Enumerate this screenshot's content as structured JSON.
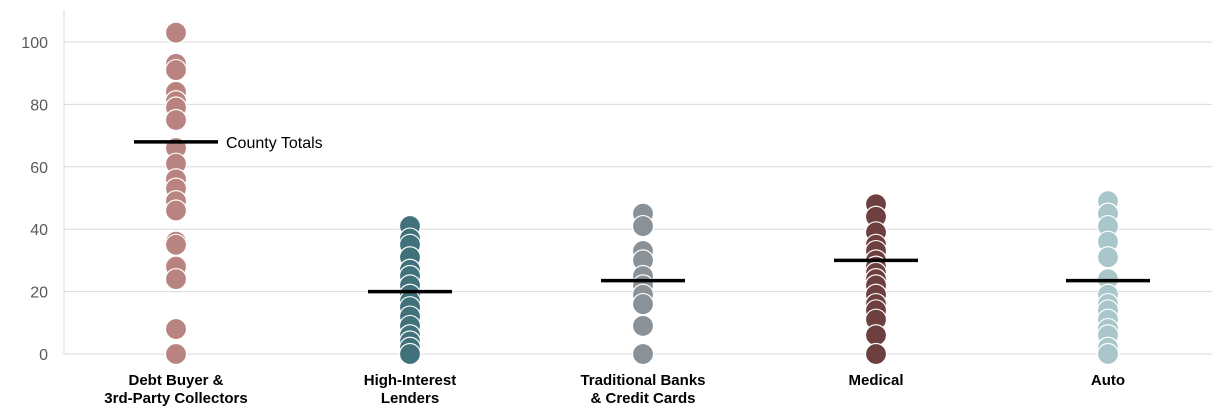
{
  "chart_data": {
    "type": "scatter",
    "title": "",
    "xlabel": "",
    "ylabel": "",
    "ylim": [
      0,
      100
    ],
    "y_ticks": [
      0,
      20,
      40,
      60,
      80,
      100
    ],
    "grid": "horizontal",
    "legend": "none",
    "categories": [
      {
        "lines": [
          "Debt Buyer &",
          "3rd-Party Collectors"
        ]
      },
      {
        "lines": [
          "High-Interest",
          "Lenders"
        ]
      },
      {
        "lines": [
          "Traditional Banks",
          "& Credit Cards"
        ]
      },
      {
        "lines": [
          "Medical"
        ]
      },
      {
        "lines": [
          "Auto"
        ]
      }
    ],
    "series": [
      {
        "category_index": 0,
        "color": "#B98480",
        "total": 68,
        "values": [
          103,
          93,
          91,
          84,
          81,
          79,
          75,
          66,
          61,
          56,
          53,
          49,
          46,
          36,
          35,
          28,
          24,
          8,
          0
        ]
      },
      {
        "category_index": 1,
        "color": "#41717A",
        "total": 20,
        "values": [
          41,
          37,
          35,
          31,
          27,
          25,
          22,
          19,
          17,
          15,
          12,
          9,
          6,
          4,
          2,
          0
        ]
      },
      {
        "category_index": 2,
        "color": "#8A9298",
        "total": 23.5,
        "values": [
          45,
          41,
          33,
          30,
          25,
          22,
          19,
          16,
          9,
          0
        ]
      },
      {
        "category_index": 3,
        "color": "#6D3F3F",
        "total": 30,
        "values": [
          48,
          44,
          39,
          35,
          33,
          30,
          28,
          26,
          24,
          22,
          19,
          16,
          14,
          11,
          6,
          0
        ]
      },
      {
        "category_index": 4,
        "color": "#A9C7CA",
        "total": 23.5,
        "values": [
          49,
          45,
          41,
          36,
          31,
          24,
          19,
          16,
          14,
          11,
          8,
          6,
          2,
          0
        ]
      }
    ],
    "annotation": {
      "text": "County Totals",
      "category_index": 0
    }
  }
}
